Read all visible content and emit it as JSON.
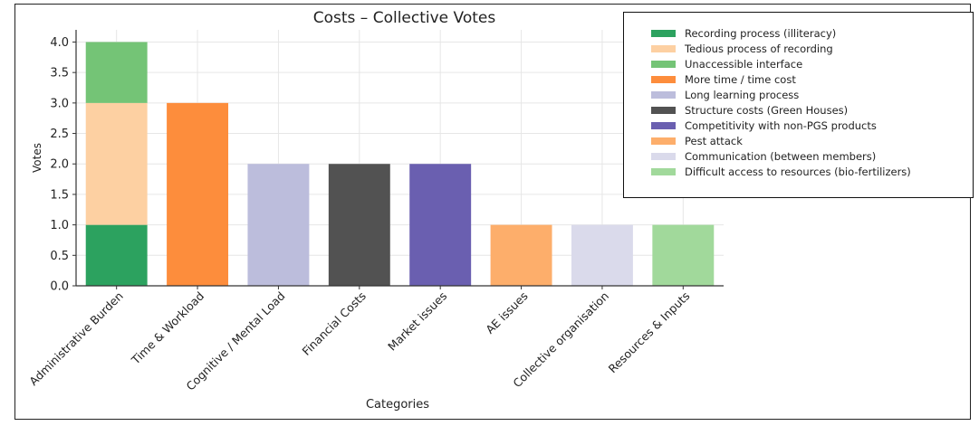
{
  "chart_data": {
    "type": "bar",
    "stacked": true,
    "title": "Costs – Collective Votes",
    "xlabel": "Categories",
    "ylabel": "Votes",
    "ylim": [
      0,
      4.2
    ],
    "yticks": [
      "0.0",
      "0.5",
      "1.0",
      "1.5",
      "2.0",
      "2.5",
      "3.0",
      "3.5",
      "4.0"
    ],
    "grid": true,
    "legend_position": "top-right",
    "categories": [
      "Administrative Burden",
      "Time & Workload",
      "Cognitive / Mental Load",
      "Financial Costs",
      "Market issues",
      "AE issues",
      "Collective organisation",
      "Resources & Inputs"
    ],
    "series": [
      {
        "name": "Recording process (illiteracy)",
        "color": "#2ca25f",
        "values": [
          1,
          0,
          0,
          0,
          0,
          0,
          0,
          0
        ]
      },
      {
        "name": "Tedious process of recording",
        "color": "#fdd0a2",
        "values": [
          2,
          0,
          0,
          0,
          0,
          0,
          0,
          0
        ]
      },
      {
        "name": "Unaccessible interface",
        "color": "#74c476",
        "values": [
          1,
          0,
          0,
          0,
          0,
          0,
          0,
          0
        ]
      },
      {
        "name": "More time / time cost",
        "color": "#fd8d3c",
        "values": [
          0,
          3,
          0,
          0,
          0,
          0,
          0,
          0
        ]
      },
      {
        "name": "Long learning process",
        "color": "#bcbddc",
        "values": [
          0,
          0,
          2,
          0,
          0,
          0,
          0,
          0
        ]
      },
      {
        "name": "Structure costs (Green Houses)",
        "color": "#525252",
        "values": [
          0,
          0,
          0,
          2,
          0,
          0,
          0,
          0
        ]
      },
      {
        "name": "Competitivity with non-PGS products",
        "color": "#6a5fb0",
        "values": [
          0,
          0,
          0,
          0,
          2,
          0,
          0,
          0
        ]
      },
      {
        "name": "Pest attack",
        "color": "#fdae6b",
        "values": [
          0,
          0,
          0,
          0,
          0,
          1,
          0,
          0
        ]
      },
      {
        "name": "Communication (between members)",
        "color": "#dadaeb",
        "values": [
          0,
          0,
          0,
          0,
          0,
          0,
          1,
          0
        ]
      },
      {
        "name": "Difficult access to resources (bio-fertilizers)",
        "color": "#a1d99b",
        "values": [
          0,
          0,
          0,
          0,
          0,
          0,
          0,
          1
        ]
      }
    ]
  }
}
